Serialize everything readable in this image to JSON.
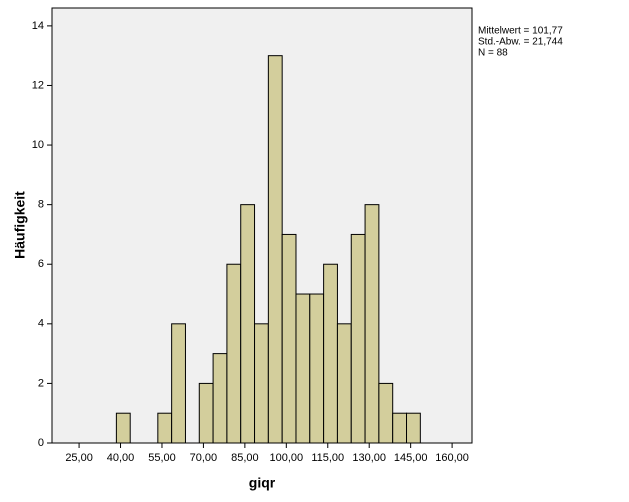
{
  "chart_data": {
    "type": "histogram",
    "bins": [
      38.5,
      43.5,
      48.5,
      53.5,
      58.5,
      63.5,
      68.5,
      73.5,
      78.5,
      83.5,
      88.5,
      93.5,
      98.5,
      103.5,
      108.5,
      113.5,
      118.5,
      123.5,
      128.5,
      133.5,
      138.5,
      143.5,
      148.5
    ],
    "values": [
      1,
      0,
      0,
      1,
      4,
      0,
      2,
      3,
      6,
      8,
      4,
      13,
      7,
      5,
      5,
      6,
      4,
      7,
      8,
      2,
      1,
      1
    ],
    "color": "#d3ce9c",
    "xlabel": "giqr",
    "ylabel": "Häufigkeit",
    "xlim": [
      15.2,
      167.2
    ],
    "ylim": [
      0,
      14.6
    ],
    "xticks": [
      {
        "value": 25,
        "label": "25,00"
      },
      {
        "value": 40,
        "label": "40,00"
      },
      {
        "value": 55,
        "label": "55,00"
      },
      {
        "value": 70,
        "label": "70,00"
      },
      {
        "value": 85,
        "label": "85,00"
      },
      {
        "value": 100,
        "label": "100,00"
      },
      {
        "value": 115,
        "label": "115,00"
      },
      {
        "value": 130,
        "label": "130,00"
      },
      {
        "value": 145,
        "label": "145,00"
      },
      {
        "value": 160,
        "label": "160,00"
      }
    ],
    "yticks": [
      0,
      2,
      4,
      6,
      8,
      10,
      12,
      14
    ],
    "stats": [
      "Mittelwert = 101,77",
      "Std.-Abw. = 21,744",
      "N = 88"
    ]
  }
}
